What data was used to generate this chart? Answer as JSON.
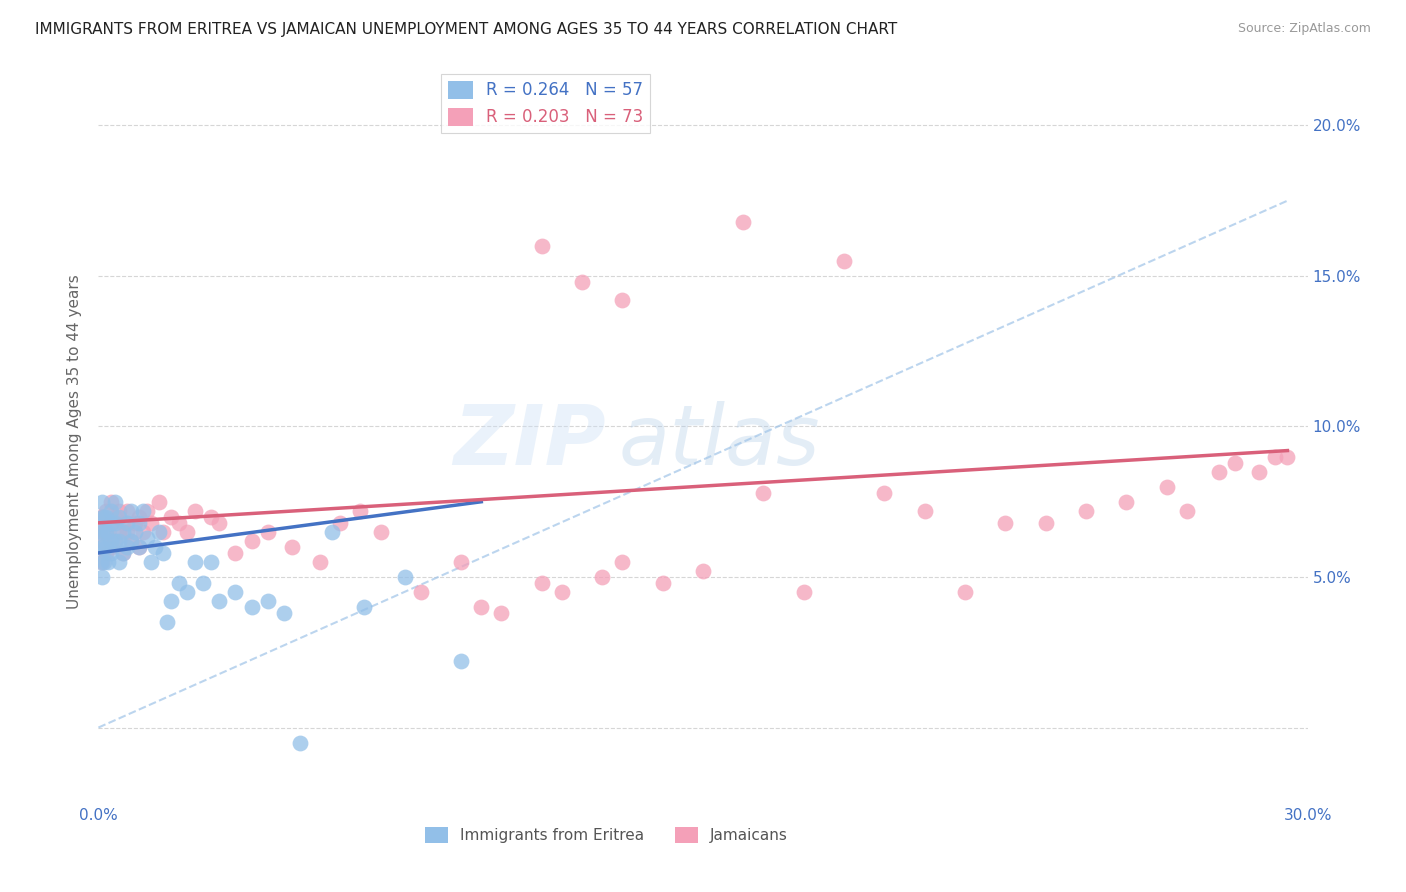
{
  "title": "IMMIGRANTS FROM ERITREA VS JAMAICAN UNEMPLOYMENT AMONG AGES 35 TO 44 YEARS CORRELATION CHART",
  "source": "Source: ZipAtlas.com",
  "ylabel": "Unemployment Among Ages 35 to 44 years",
  "xlim": [
    0.0,
    0.3
  ],
  "ylim": [
    -0.025,
    0.215
  ],
  "eritrea_R": 0.264,
  "eritrea_N": 57,
  "jamaican_R": 0.203,
  "jamaican_N": 73,
  "eritrea_color": "#92bfe8",
  "jamaican_color": "#f4a0b8",
  "eritrea_line_color": "#4472c4",
  "jamaican_line_color": "#d9607a",
  "eritrea_dash_color": "#a0c4e8",
  "legend_eritrea_label": "Immigrants from Eritrea",
  "legend_jamaican_label": "Jamaicans",
  "watermark": "ZIPatlas",
  "yticks": [
    0.0,
    0.05,
    0.1,
    0.15,
    0.2
  ],
  "ytick_labels": [
    "",
    "5.0%",
    "10.0%",
    "15.0%",
    "20.0%"
  ],
  "xtick_vals": [
    0.0,
    0.05,
    0.1,
    0.15,
    0.2,
    0.25,
    0.3
  ],
  "xtick_labels": [
    "0.0%",
    "",
    "",
    "",
    "",
    "",
    "30.0%"
  ],
  "eritrea_x": [
    0.0005,
    0.0006,
    0.0007,
    0.0008,
    0.0009,
    0.001,
    0.001,
    0.001,
    0.0015,
    0.0015,
    0.002,
    0.002,
    0.002,
    0.0025,
    0.0025,
    0.003,
    0.003,
    0.003,
    0.003,
    0.004,
    0.004,
    0.004,
    0.005,
    0.005,
    0.005,
    0.006,
    0.006,
    0.007,
    0.007,
    0.008,
    0.008,
    0.009,
    0.01,
    0.01,
    0.011,
    0.012,
    0.013,
    0.014,
    0.015,
    0.016,
    0.017,
    0.018,
    0.02,
    0.022,
    0.024,
    0.026,
    0.028,
    0.03,
    0.034,
    0.038,
    0.042,
    0.046,
    0.05,
    0.058,
    0.066,
    0.076,
    0.09
  ],
  "eritrea_y": [
    0.065,
    0.06,
    0.055,
    0.07,
    0.05,
    0.06,
    0.065,
    0.075,
    0.055,
    0.07,
    0.06,
    0.065,
    0.07,
    0.055,
    0.065,
    0.058,
    0.062,
    0.068,
    0.072,
    0.062,
    0.068,
    0.075,
    0.055,
    0.062,
    0.07,
    0.058,
    0.065,
    0.06,
    0.068,
    0.062,
    0.072,
    0.065,
    0.06,
    0.068,
    0.072,
    0.063,
    0.055,
    0.06,
    0.065,
    0.058,
    0.035,
    0.042,
    0.048,
    0.045,
    0.055,
    0.048,
    0.055,
    0.042,
    0.045,
    0.04,
    0.042,
    0.038,
    -0.005,
    0.065,
    0.04,
    0.05,
    0.022
  ],
  "jamaican_x": [
    0.0005,
    0.0008,
    0.001,
    0.001,
    0.0015,
    0.002,
    0.002,
    0.002,
    0.003,
    0.003,
    0.003,
    0.004,
    0.004,
    0.005,
    0.005,
    0.006,
    0.006,
    0.007,
    0.007,
    0.008,
    0.009,
    0.01,
    0.01,
    0.011,
    0.012,
    0.013,
    0.015,
    0.016,
    0.018,
    0.02,
    0.022,
    0.024,
    0.028,
    0.03,
    0.034,
    0.038,
    0.042,
    0.048,
    0.055,
    0.06,
    0.065,
    0.07,
    0.08,
    0.09,
    0.095,
    0.1,
    0.11,
    0.115,
    0.125,
    0.13,
    0.14,
    0.15,
    0.16,
    0.165,
    0.175,
    0.185,
    0.195,
    0.205,
    0.215,
    0.225,
    0.235,
    0.245,
    0.255,
    0.265,
    0.27,
    0.278,
    0.282,
    0.288,
    0.292,
    0.295,
    0.11,
    0.12,
    0.13
  ],
  "jamaican_y": [
    0.068,
    0.062,
    0.055,
    0.07,
    0.065,
    0.058,
    0.065,
    0.072,
    0.06,
    0.068,
    0.075,
    0.062,
    0.07,
    0.065,
    0.072,
    0.058,
    0.068,
    0.065,
    0.072,
    0.062,
    0.068,
    0.06,
    0.07,
    0.065,
    0.072,
    0.068,
    0.075,
    0.065,
    0.07,
    0.068,
    0.065,
    0.072,
    0.07,
    0.068,
    0.058,
    0.062,
    0.065,
    0.06,
    0.055,
    0.068,
    0.072,
    0.065,
    0.045,
    0.055,
    0.04,
    0.038,
    0.048,
    0.045,
    0.05,
    0.055,
    0.048,
    0.052,
    0.168,
    0.078,
    0.045,
    0.155,
    0.078,
    0.072,
    0.045,
    0.068,
    0.068,
    0.072,
    0.075,
    0.08,
    0.072,
    0.085,
    0.088,
    0.085,
    0.09,
    0.09,
    0.16,
    0.148,
    0.142
  ],
  "eritrea_line_x0": 0.0,
  "eritrea_line_x1": 0.095,
  "eritrea_line_y0": 0.058,
  "eritrea_line_y1": 0.075,
  "jamaican_line_x0": 0.0,
  "jamaican_line_x1": 0.295,
  "jamaican_line_y0": 0.068,
  "jamaican_line_y1": 0.092,
  "dashed_line_x0": 0.0,
  "dashed_line_x1": 0.295,
  "dashed_line_y0": 0.0,
  "dashed_line_y1": 0.175
}
